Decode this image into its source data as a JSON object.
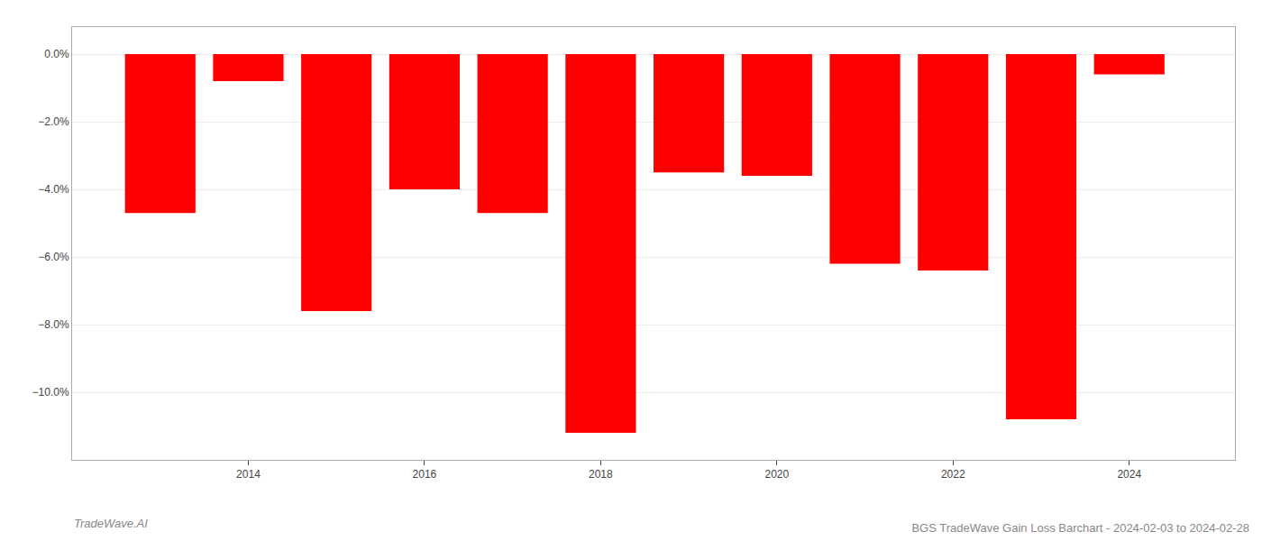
{
  "chart_data": {
    "type": "bar",
    "title": "BGS TradeWave Gain Loss Barchart - 2024-02-03 to 2024-02-28",
    "annotations": [
      "TradeWave.AI"
    ],
    "x": [
      2013,
      2014,
      2015,
      2016,
      2017,
      2018,
      2019,
      2020,
      2021,
      2022,
      2023,
      2024
    ],
    "values": [
      -4.7,
      -0.8,
      -7.6,
      -4.0,
      -4.7,
      -11.2,
      -3.5,
      -3.6,
      -6.2,
      -6.4,
      -10.8,
      -0.6
    ],
    "color": "#ff0000",
    "xlim": [
      2012.0,
      2025.2
    ],
    "xticks": [
      2014,
      2016,
      2018,
      2020,
      2022,
      2024
    ],
    "ylim": [
      -12.0,
      0.8
    ],
    "yticks": [
      {
        "value": 0.0,
        "label": "0.0%"
      },
      {
        "value": -2.0,
        "label": "−2.0%"
      },
      {
        "value": -4.0,
        "label": "−4.0%"
      },
      {
        "value": -6.0,
        "label": "−6.0%"
      },
      {
        "value": -8.0,
        "label": "−8.0%"
      },
      {
        "value": -10.0,
        "label": "−10.0%"
      }
    ],
    "grid": true
  }
}
